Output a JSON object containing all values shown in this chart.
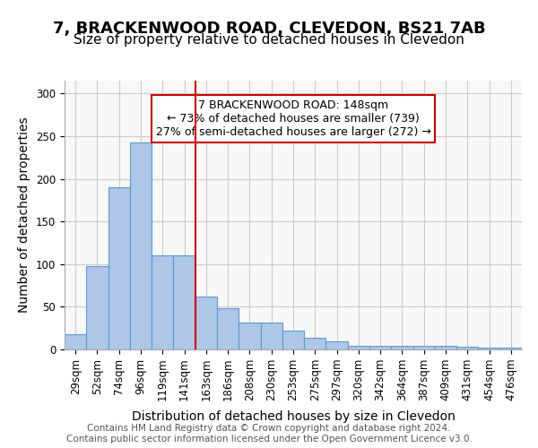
{
  "title": "7, BRACKENWOOD ROAD, CLEVEDON, BS21 7AB",
  "subtitle": "Size of property relative to detached houses in Clevedon",
  "xlabel": "Distribution of detached houses by size in Clevedon",
  "ylabel": "Number of detached properties",
  "categories": [
    "29sqm",
    "52sqm",
    "74sqm",
    "96sqm",
    "119sqm",
    "141sqm",
    "163sqm",
    "186sqm",
    "208sqm",
    "230sqm",
    "253sqm",
    "275sqm",
    "297sqm",
    "320sqm",
    "342sqm",
    "364sqm",
    "387sqm",
    "409sqm",
    "431sqm",
    "454sqm",
    "476sqm"
  ],
  "values": [
    18,
    98,
    190,
    243,
    110,
    110,
    62,
    48,
    31,
    31,
    22,
    14,
    9,
    4,
    4,
    4,
    4,
    4,
    3,
    2,
    2
  ],
  "bar_color": "#aec6e8",
  "bar_edgecolor": "#5b9bd5",
  "marker_index": 5,
  "marker_value": 148,
  "marker_label": "141sqm",
  "red_line_color": "#cc0000",
  "annotation_text": "7 BRACKENWOOD ROAD: 148sqm\n← 73% of detached houses are smaller (739)\n27% of semi-detached houses are larger (272) →",
  "annotation_box_edgecolor": "#cc0000",
  "annotation_box_facecolor": "#ffffff",
  "footer_text": "Contains HM Land Registry data © Crown copyright and database right 2024.\nContains public sector information licensed under the Open Government Licence v3.0.",
  "ylim": [
    0,
    315
  ],
  "yticks": [
    0,
    50,
    100,
    150,
    200,
    250,
    300
  ],
  "grid_color": "#cccccc",
  "bg_color": "#f8f8f8",
  "title_fontsize": 13,
  "subtitle_fontsize": 11,
  "axis_label_fontsize": 10,
  "tick_fontsize": 8.5,
  "annotation_fontsize": 9,
  "footer_fontsize": 7.5
}
